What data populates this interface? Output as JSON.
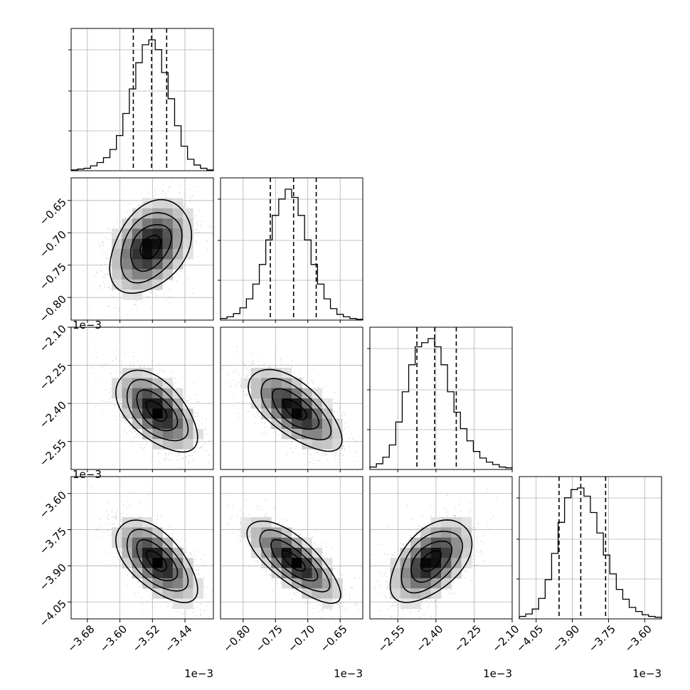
{
  "chart_data": {
    "type": "corner",
    "title": "",
    "parameters": 4,
    "colors": {
      "line": "#000000",
      "grid": "#b0b0b0",
      "scatter": "#8c8c8c",
      "background": "#ffffff"
    },
    "axes": [
      {
        "range": [
          -3.72,
          -3.37
        ],
        "ticks": [
          -3.68,
          -3.6,
          -3.52,
          -3.44
        ],
        "tick_labels": [
          "−3.68",
          "−3.60",
          "−3.52",
          "−3.44"
        ],
        "offset_text": "1e−3"
      },
      {
        "range": [
          -0.835,
          -0.615
        ],
        "ticks": [
          -0.8,
          -0.75,
          -0.7,
          -0.65
        ],
        "tick_labels": [
          "−0.80",
          "−0.75",
          "−0.70",
          "−0.65"
        ],
        "offset_text": "1e−3"
      },
      {
        "range": [
          -2.66,
          -2.1
        ],
        "ticks": [
          -2.55,
          -2.4,
          -2.25,
          -2.1
        ],
        "tick_labels": [
          "−2.55",
          "−2.40",
          "−2.25",
          "−2.10"
        ],
        "offset_text": "1e−3"
      },
      {
        "range": [
          -4.12,
          -3.53
        ],
        "ticks": [
          -4.05,
          -3.9,
          -3.75,
          -3.6
        ],
        "tick_labels": [
          "−4.05",
          "−3.90",
          "−3.75",
          "−3.60"
        ],
        "offset_text": "1e−3"
      }
    ],
    "row_offset_texts": [
      "1e−3",
      "1e−3"
    ],
    "marginals": [
      {
        "quantiles": [
          -3.567,
          -3.522,
          -3.485
        ],
        "hist": [
          1,
          2,
          3,
          6,
          10,
          16,
          26,
          43,
          70,
          100,
          132,
          154,
          160,
          148,
          120,
          88,
          55,
          30,
          14,
          7,
          3,
          1
        ]
      },
      {
        "quantiles": [
          -0.758,
          -0.722,
          -0.687
        ],
        "hist": [
          2,
          4,
          8,
          15,
          26,
          44,
          68,
          98,
          128,
          148,
          160,
          150,
          128,
          98,
          68,
          44,
          26,
          14,
          7,
          4,
          2,
          1
        ]
      },
      {
        "quantiles": [
          -2.475,
          -2.405,
          -2.32
        ],
        "hist": [
          3,
          7,
          15,
          30,
          58,
          95,
          128,
          150,
          155,
          160,
          150,
          128,
          95,
          70,
          50,
          35,
          22,
          14,
          9,
          6,
          3,
          2
        ]
      },
      {
        "quantiles": [
          -3.955,
          -3.865,
          -3.762
        ],
        "hist": [
          3,
          6,
          12,
          25,
          48,
          80,
          118,
          148,
          158,
          160,
          150,
          130,
          105,
          78,
          55,
          36,
          24,
          14,
          9,
          5,
          3,
          2
        ]
      }
    ],
    "pairs": [
      {
        "row": 1,
        "col": 0,
        "mean": [
          -3.525,
          -0.722
        ],
        "std": [
          0.05,
          0.036
        ],
        "corr": 0.35
      },
      {
        "row": 2,
        "col": 0,
        "mean": [
          -3.51,
          -2.43
        ],
        "std": [
          0.05,
          0.08
        ],
        "corr": -0.55
      },
      {
        "row": 2,
        "col": 1,
        "mean": [
          -0.72,
          -2.425
        ],
        "std": [
          0.036,
          0.08
        ],
        "corr": -0.65
      },
      {
        "row": 3,
        "col": 0,
        "mean": [
          -3.51,
          -3.88
        ],
        "std": [
          0.05,
          0.085
        ],
        "corr": -0.6
      },
      {
        "row": 3,
        "col": 1,
        "mean": [
          -0.722,
          -3.88
        ],
        "std": [
          0.036,
          0.085
        ],
        "corr": -0.75
      },
      {
        "row": 3,
        "col": 2,
        "mean": [
          -2.42,
          -3.88
        ],
        "std": [
          0.08,
          0.085
        ],
        "corr": 0.5
      }
    ],
    "contour_levels_sigma": [
      0.5,
      1.0,
      1.5,
      2.0
    ]
  }
}
